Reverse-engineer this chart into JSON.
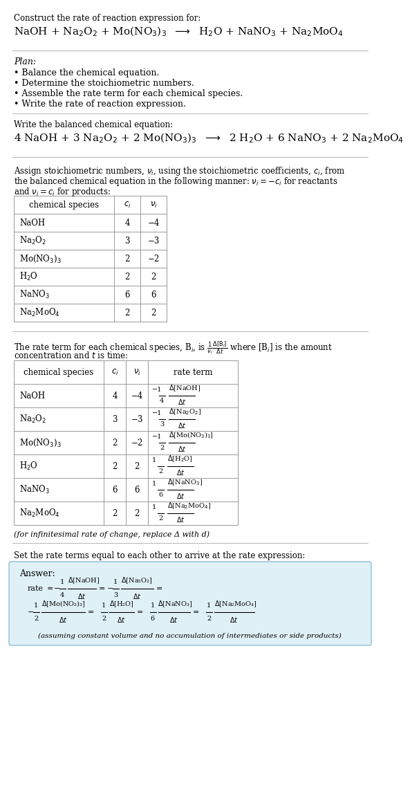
{
  "bg_color": "#ffffff",
  "text_color": "#000000",
  "section1_title": "Construct the rate of reaction expression for:",
  "section1_reaction": "NaOH + Na$_2$O$_2$ + Mo(NO$_3$)$_3$  $\\longrightarrow$  H$_2$O + NaNO$_3$ + Na$_2$MoO$_4$",
  "plan_title": "Plan:",
  "plan_items": [
    "Balance the chemical equation.",
    "Determine the stoichiometric numbers.",
    "Assemble the rate term for each chemical species.",
    "Write the rate of reaction expression."
  ],
  "balanced_title": "Write the balanced chemical equation:",
  "balanced_eq": "4 NaOH + 3 Na$_2$O$_2$ + 2 Mo(NO$_3$)$_3$  $\\longrightarrow$  2 H$_2$O + 6 NaNO$_3$ + 2 Na$_2$MoO$_4$",
  "stoich_intro_1": "Assign stoichiometric numbers, $\\nu_i$, using the stoichiometric coefficients, $c_i$, from",
  "stoich_intro_2": "the balanced chemical equation in the following manner: $\\nu_i = -c_i$ for reactants",
  "stoich_intro_3": "and $\\nu_i = c_i$ for products:",
  "table1_headers": [
    "chemical species",
    "$c_i$",
    "$\\nu_i$"
  ],
  "table1_species": [
    "NaOH",
    "Na$_2$O$_2$",
    "Mo(NO$_3$)$_3$",
    "H$_2$O",
    "NaNO$_3$",
    "Na$_2$MoO$_4$"
  ],
  "table1_ci": [
    "4",
    "3",
    "2",
    "2",
    "6",
    "2"
  ],
  "table1_ni": [
    "−4",
    "−3",
    "−2",
    "2",
    "6",
    "2"
  ],
  "rate_intro_1": "The rate term for each chemical species, B$_i$, is $\\frac{1}{\\nu_i}\\frac{\\Delta[\\mathrm{B}_i]}{\\Delta t}$ where [B$_i$] is the amount",
  "rate_intro_2": "concentration and $t$ is time:",
  "table2_headers": [
    "chemical species",
    "$c_i$",
    "$\\nu_i$",
    "rate term"
  ],
  "table2_species": [
    "NaOH",
    "Na$_2$O$_2$",
    "Mo(NO$_3$)$_3$",
    "H$_2$O",
    "NaNO$_3$",
    "Na$_2$MoO$_4$"
  ],
  "table2_ci": [
    "4",
    "3",
    "2",
    "2",
    "6",
    "2"
  ],
  "table2_ni": [
    "−4",
    "−3",
    "−2",
    "2",
    "6",
    "2"
  ],
  "table2_rate_num": [
    "−1",
    "−1",
    "−1",
    "1",
    "1",
    "1"
  ],
  "table2_rate_den": [
    "4",
    "3",
    "2",
    "2",
    "6",
    "2"
  ],
  "table2_rate_spec": [
    "$\\Delta$[NaOH]",
    "$\\Delta$[Na$_2$O$_2$]",
    "$\\Delta$[Mo(NO$_3$)$_3$]",
    "$\\Delta$[H$_2$O]",
    "$\\Delta$[NaNO$_3$]",
    "$\\Delta$[Na$_2$MoO$_4$]"
  ],
  "infinitesimal_note": "(for infinitesimal rate of change, replace Δ with d)",
  "set_equal_text": "Set the rate terms equal to each other to arrive at the rate expression:",
  "answer_label": "Answer:",
  "answer_bg": "#dff0f7",
  "answer_border": "#a0c8dc",
  "answer_footnote": "(assuming constant volume and no accumulation of intermediates or side products)"
}
